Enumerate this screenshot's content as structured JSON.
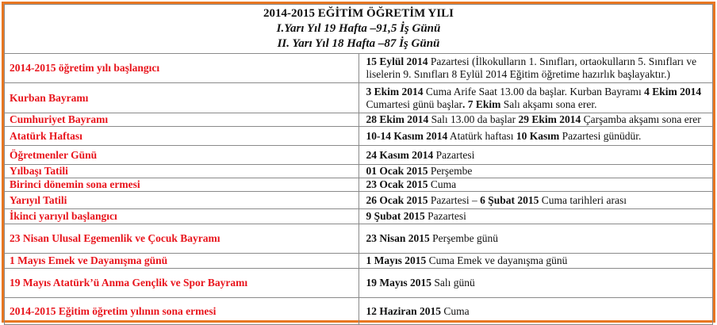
{
  "header": {
    "title": "2014-2015 EĞİTİM ÖĞRETİM YILI",
    "line1": "I.Yarı Yıl 19  Hafta –91,5 İş Günü",
    "line2": "II. Yarı Yıl 18 Hafta –87 İş Günü"
  },
  "colors": {
    "border": "#e87722",
    "label": "#e8141c"
  },
  "rows": [
    {
      "label": "2014-2015 öğretim yılı başlangıcı",
      "value": [
        {
          "b": true,
          "t": "15 Eylül 2014"
        },
        {
          "t": " Pazartesi (İlkokulların 1. Sınıfları, ortaokulların 5. Sınıfları  ve liselerin 9. Sınıfları 8 Eylül 2014 Eğitim öğretime hazırlık başlayaktır.)"
        }
      ]
    },
    {
      "label": "Kurban Bayramı",
      "value": [
        {
          "b": true,
          "t": "3 Ekim 2014"
        },
        {
          "t": " Cuma Arife Saat 13.00 da başlar. Kurban Bayramı "
        },
        {
          "b": true,
          "t": "4 Ekim 2014"
        },
        {
          "t": " Cumartesi günü başlar"
        },
        {
          "b": true,
          "t": ". 7 Ekim"
        },
        {
          "t": " Salı akşamı sona erer."
        }
      ]
    },
    {
      "label": "Cumhuriyet Bayramı",
      "value": [
        {
          "b": true,
          "t": "28 Ekim 2014"
        },
        {
          "t": " Salı 13.00 da başlar "
        },
        {
          "b": true,
          "t": "29 Ekim 2014"
        },
        {
          "t": " Çarşamba akşamı sona erer"
        }
      ]
    },
    {
      "label": "Atatürk Haftası",
      "value": [
        {
          "b": true,
          "t": "10-14 Kasım 2014"
        },
        {
          "t": " Atatürk haftası   "
        },
        {
          "b": true,
          "t": "10 Kasım"
        },
        {
          "t": " Pazartesi günüdür."
        }
      ]
    },
    {
      "label": "Öğretmenler Günü",
      "value": [
        {
          "b": true,
          "t": "24 Kasım 2014"
        },
        {
          "t": " Pazartesi"
        }
      ]
    },
    {
      "label": "Yılbaşı Tatili",
      "value": [
        {
          "b": true,
          "t": "01 Ocak 2015"
        },
        {
          "t": " Perşembe"
        }
      ]
    },
    {
      "label": "Birinci dönemin sona ermesi",
      "value": [
        {
          "b": true,
          "t": "23 Ocak 2015"
        },
        {
          "t": " Cuma"
        }
      ]
    },
    {
      "label": "Yarıyıl Tatili",
      "value": [
        {
          "b": true,
          "t": "26 Ocak 2015"
        },
        {
          "t": " Pazartesi – "
        },
        {
          "b": true,
          "t": "6 Şubat 2015"
        },
        {
          "t": " Cuma tarihleri arası"
        }
      ]
    },
    {
      "label": "İkinci yarıyıl başlangıcı",
      "value": [
        {
          "b": true,
          "t": "9 Şubat 2015"
        },
        {
          "t": " Pazartesi"
        }
      ]
    },
    {
      "label": "23 Nisan  Ulusal Egemenlik ve Çocuk Bayramı",
      "value": [
        {
          "b": true,
          "t": "23 Nisan 2015"
        },
        {
          "t": " Perşembe günü"
        }
      ]
    },
    {
      "label": "1 Mayıs Emek ve Dayanışma günü",
      "value": [
        {
          "b": true,
          "t": "1 Mayıs 2015"
        },
        {
          "t": " Cuma  Emek ve dayanışma günü"
        }
      ]
    },
    {
      "label": "19 Mayıs Atatürk’ü Anma Gençlik ve Spor Bayramı",
      "value": [
        {
          "b": true,
          "t": "19 Mayıs 2015"
        },
        {
          "t": " Salı günü"
        }
      ]
    },
    {
      "label": "2014-2015 Eğitim öğretim yılının sona ermesi",
      "value": [
        {
          "b": true,
          "t": "12 Haziran 2015"
        },
        {
          "t": " Cuma"
        }
      ]
    }
  ]
}
